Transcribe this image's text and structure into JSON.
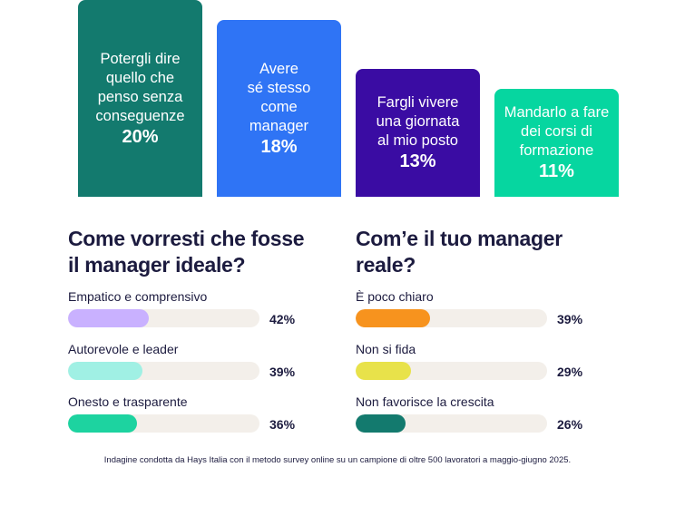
{
  "chart_data": [
    {
      "type": "bar",
      "categories": [
        "Potergli dire\nquello che\npenso senza\nconseguenze",
        "Avere\nsé stesso\ncome\nmanager",
        "Fargli vivere\nuna giornata\nal mio posto",
        "Mandarlo a fare\ndei corsi di\nformazione"
      ],
      "values": [
        20,
        18,
        13,
        11
      ],
      "value_labels": [
        "20%",
        "18%",
        "13%",
        "11%"
      ],
      "colors": [
        "#137a6e",
        "#2f74f5",
        "#3a0ca3",
        "#06d6a0"
      ],
      "ylim": [
        0,
        20
      ]
    },
    {
      "type": "bar",
      "orientation": "horizontal",
      "title": "Come vorresti che fosse\nil manager ideale?",
      "categories": [
        "Empatico e comprensivo",
        "Autorevole e leader",
        "Onesto e trasparente"
      ],
      "values": [
        42,
        39,
        36
      ],
      "value_labels": [
        "42%",
        "39%",
        "36%"
      ],
      "colors": [
        "#c9b1ff",
        "#a0f0e4",
        "#1dd3a0"
      ],
      "xlim": [
        0,
        100
      ]
    },
    {
      "type": "bar",
      "orientation": "horizontal",
      "title": "Com’e il tuo manager\nreale?",
      "categories": [
        "È poco chiaro",
        "Non si fida",
        "Non favorisce la crescita"
      ],
      "values": [
        39,
        29,
        26
      ],
      "value_labels": [
        "39%",
        "29%",
        "26%"
      ],
      "colors": [
        "#f7931e",
        "#e8e24a",
        "#137a6e"
      ],
      "xlim": [
        0,
        100
      ]
    }
  ],
  "footnote": "Indagine condotta da Hays Italia con il metodo survey online su un campione di oltre 500 lavoratori a maggio-giugno 2025."
}
